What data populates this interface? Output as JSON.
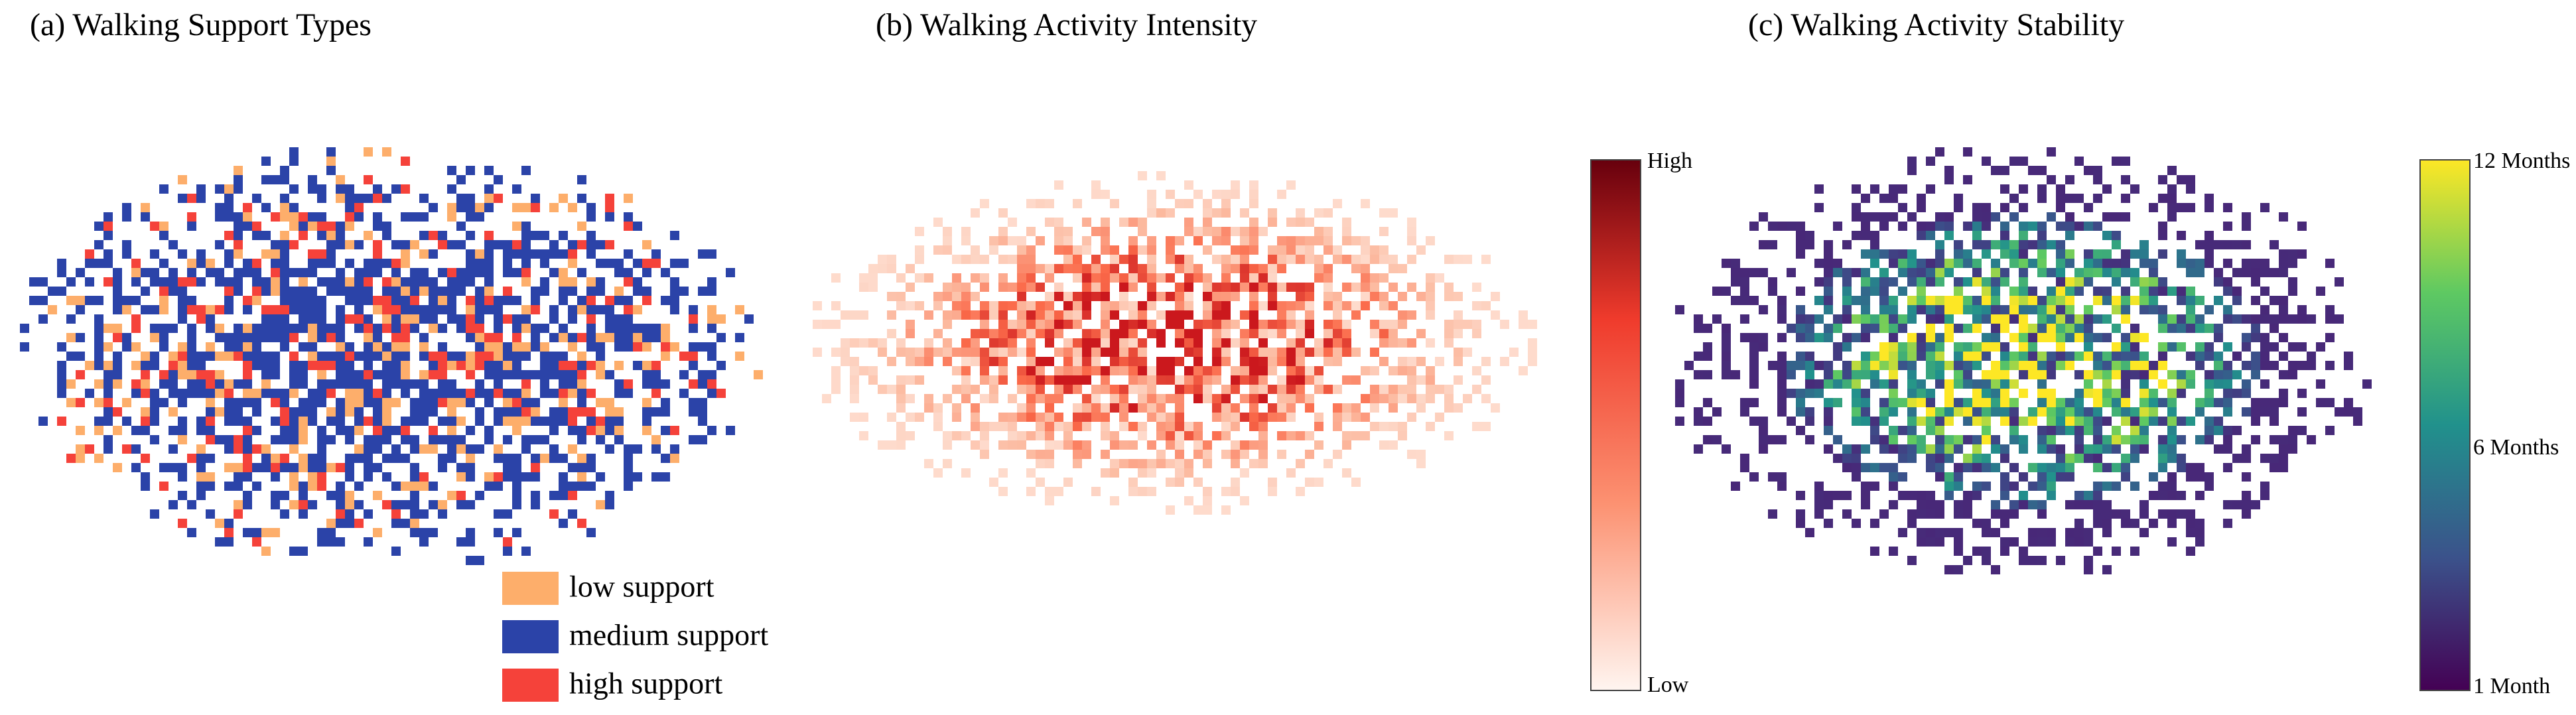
{
  "panels": [
    {
      "title": "(a) Walking Support Types",
      "legend": [
        {
          "label": "low support",
          "color": "#fdae6b"
        },
        {
          "label": "medium support",
          "color": "#2b43a8"
        },
        {
          "label": "high support",
          "color": "#f5423a"
        }
      ]
    },
    {
      "title": "(b) Walking Activity Intensity",
      "colorbar": {
        "top": "High",
        "bottom": "Low"
      }
    },
    {
      "title": "(c) Walking Activity Stability",
      "colorbar": {
        "top": "12 Months",
        "middle": "6 Months",
        "bottom": "1 Month"
      }
    }
  ]
}
